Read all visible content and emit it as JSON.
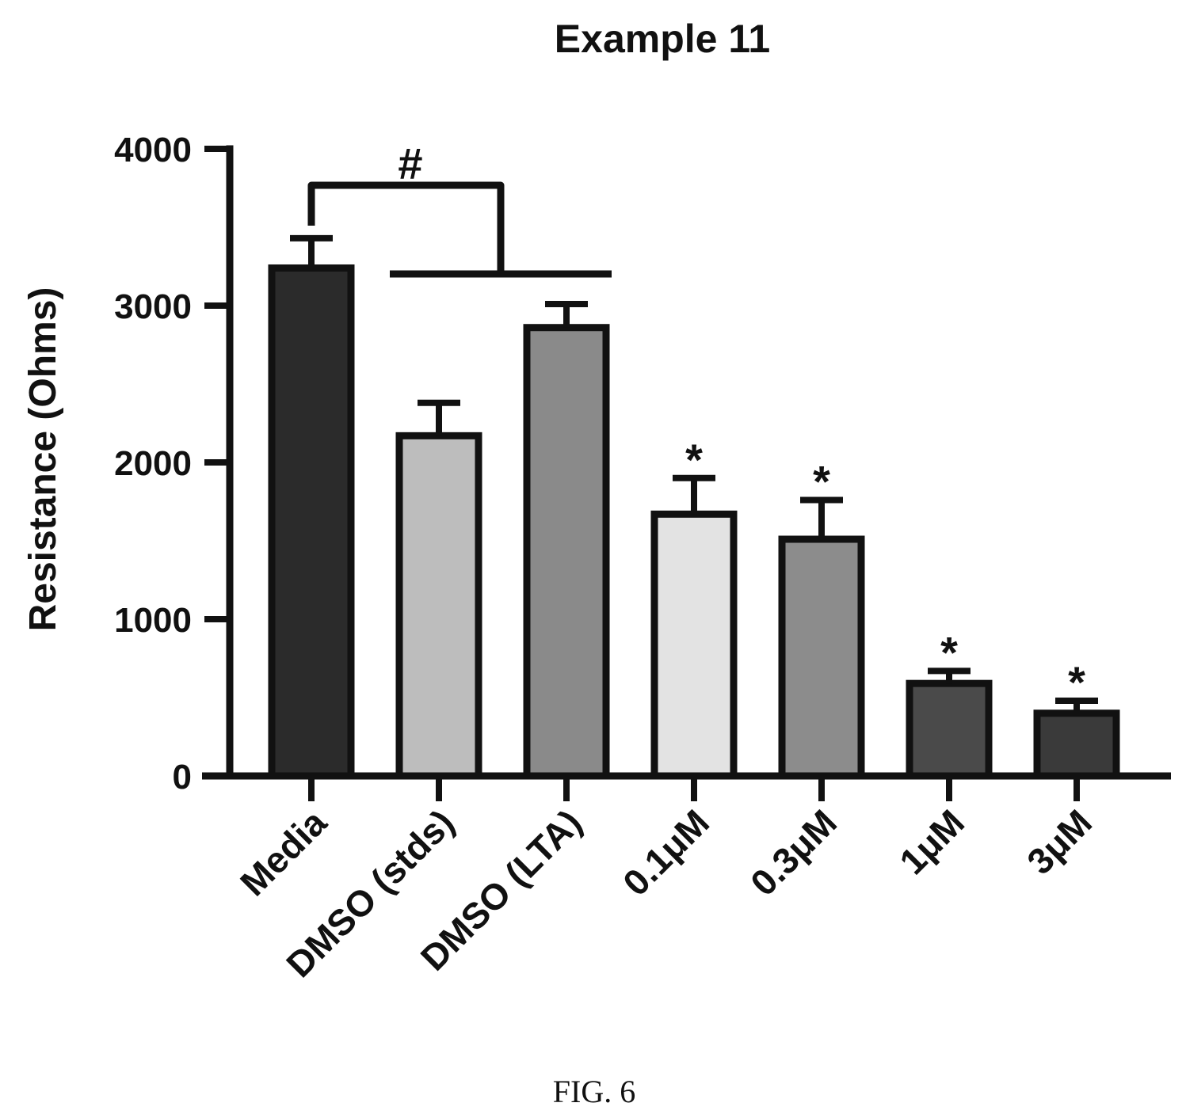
{
  "figure": {
    "caption": "FIG. 6"
  },
  "chart_data": {
    "type": "bar",
    "title": "Example 11",
    "xlabel": "",
    "ylabel": "Resistance (Ohms)",
    "ylim": [
      0,
      4000
    ],
    "yticks": [
      0,
      1000,
      2000,
      3000,
      4000
    ],
    "grid": false,
    "legend": "none",
    "categories": [
      "Media",
      "DMSO (stds)",
      "DMSO (LTA)",
      "0.1μM",
      "0.3μM",
      "1μM",
      "3μM"
    ],
    "values": [
      3240,
      2170,
      2860,
      1670,
      1510,
      590,
      400
    ],
    "errors": [
      190,
      210,
      150,
      230,
      250,
      80,
      80
    ],
    "bar_colors": [
      "#2b2b2b",
      "#bdbdbd",
      "#8a8a8a",
      "#e3e3e3",
      "#8c8c8c",
      "#4a4a4a",
      "#3a3a3a"
    ],
    "significance": {
      "bracket_label": "#",
      "star_label": "*",
      "starred_categories": [
        "0.1μM",
        "0.3μM",
        "1μM",
        "3μM"
      ]
    }
  }
}
